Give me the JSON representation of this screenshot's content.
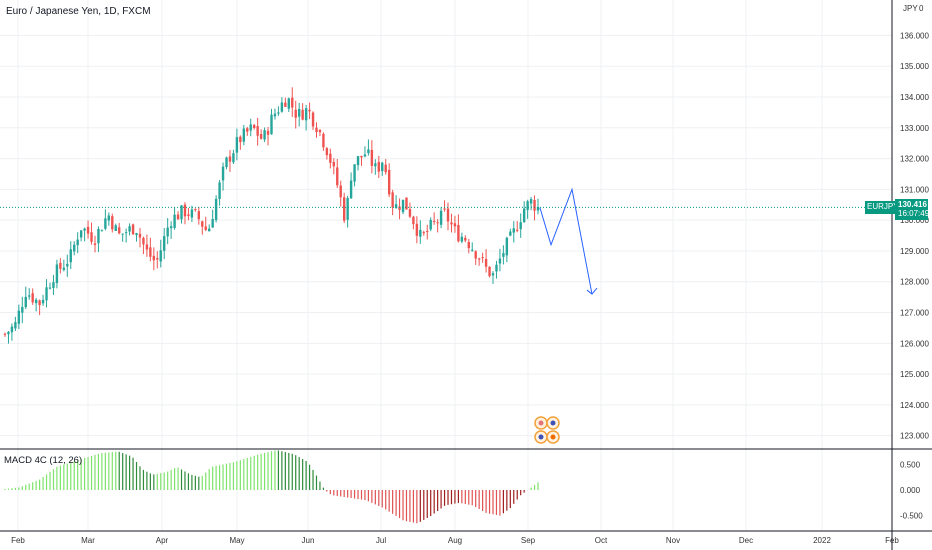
{
  "header": {
    "title": "Euro / Japanese Yen, 1D, FXCM"
  },
  "indicator": {
    "title": "MACD 4C (12, 26)"
  },
  "price_tag": {
    "symbol": "EURJPY",
    "price": "130.416",
    "countdown": "16:07:49",
    "color": "#089981"
  },
  "corner": {
    "currency": "JPY",
    "zero": "0"
  },
  "colors": {
    "up": "#26a69a",
    "down": "#ef5350",
    "projection": "#2962ff",
    "macd_up": "#7ee36b",
    "macd_up_dark": "#2e8b3a",
    "macd_down": "#e05252",
    "macd_down_dark": "#a01e1e"
  },
  "chart_data": [
    {
      "type": "candlestick",
      "y_axis": {
        "ticks": [
          "123.000",
          "124.000",
          "125.000",
          "126.000",
          "127.000",
          "128.000",
          "129.000",
          "130.000",
          "131.000",
          "132.000",
          "133.000",
          "134.000",
          "135.000",
          "136.000"
        ],
        "ylim": [
          122.6,
          137.15
        ]
      },
      "x_axis": {
        "ticks": [
          "Feb",
          "Mar",
          "Apr",
          "May",
          "Jun",
          "Jul",
          "Aug",
          "Sep",
          "Oct",
          "Nov",
          "Dec",
          "2022",
          "Feb"
        ]
      },
      "grid": true,
      "close_path": [
        [
          0,
          126.3
        ],
        [
          6,
          126.6
        ],
        [
          12,
          127.7
        ],
        [
          20,
          127.3
        ],
        [
          28,
          128.2
        ],
        [
          38,
          128.8
        ],
        [
          44,
          129.8
        ],
        [
          52,
          129.4
        ],
        [
          60,
          130.2
        ],
        [
          66,
          129.5
        ],
        [
          76,
          129.8
        ],
        [
          82,
          129.0
        ],
        [
          88,
          128.6
        ],
        [
          96,
          130.0
        ],
        [
          104,
          130.3
        ],
        [
          112,
          130.1
        ],
        [
          118,
          129.6
        ],
        [
          122,
          130.5
        ],
        [
          128,
          131.8
        ],
        [
          136,
          132.6
        ],
        [
          144,
          133.0
        ],
        [
          150,
          132.6
        ],
        [
          156,
          133.4
        ],
        [
          164,
          134.0
        ],
        [
          170,
          133.4
        ],
        [
          176,
          133.6
        ],
        [
          182,
          133.0
        ],
        [
          188,
          132.2
        ],
        [
          194,
          131.0
        ],
        [
          198,
          130.0
        ],
        [
          202,
          131.8
        ],
        [
          210,
          132.2
        ],
        [
          216,
          131.6
        ],
        [
          220,
          132.0
        ],
        [
          226,
          130.4
        ],
        [
          232,
          130.6
        ],
        [
          236,
          130.2
        ],
        [
          242,
          129.4
        ],
        [
          248,
          129.8
        ],
        [
          256,
          130.2
        ],
        [
          262,
          129.6
        ],
        [
          268,
          129.4
        ],
        [
          276,
          128.8
        ],
        [
          280,
          128.4
        ],
        [
          284,
          128.2
        ],
        [
          290,
          129.0
        ],
        [
          296,
          129.6
        ],
        [
          302,
          130.4
        ],
        [
          306,
          130.6
        ],
        [
          310,
          130.4
        ]
      ],
      "projection": [
        [
          130.4
        ],
        [
          129.2
        ],
        [
          131.0
        ],
        [
          127.6
        ]
      ],
      "last_price": 130.416
    },
    {
      "type": "histogram",
      "title": "MACD 4C (12, 26)",
      "y_axis": {
        "ticks": [
          "0.500",
          "0.000",
          "-0.500"
        ],
        "ylim": [
          -0.78,
          0.78
        ]
      },
      "values_path": [
        [
          0,
          0.02
        ],
        [
          8,
          0.05
        ],
        [
          20,
          0.2
        ],
        [
          30,
          0.45
        ],
        [
          44,
          0.6
        ],
        [
          56,
          0.72
        ],
        [
          66,
          0.75
        ],
        [
          74,
          0.65
        ],
        [
          80,
          0.4
        ],
        [
          86,
          0.3
        ],
        [
          94,
          0.35
        ],
        [
          100,
          0.45
        ],
        [
          108,
          0.3
        ],
        [
          114,
          0.25
        ],
        [
          120,
          0.45
        ],
        [
          134,
          0.55
        ],
        [
          148,
          0.7
        ],
        [
          158,
          0.78
        ],
        [
          168,
          0.7
        ],
        [
          176,
          0.55
        ],
        [
          180,
          0.35
        ],
        [
          186,
          0.0
        ],
        [
          190,
          -0.1
        ],
        [
          200,
          -0.15
        ],
        [
          210,
          -0.2
        ],
        [
          220,
          -0.35
        ],
        [
          232,
          -0.6
        ],
        [
          240,
          -0.65
        ],
        [
          248,
          -0.5
        ],
        [
          256,
          -0.3
        ],
        [
          264,
          -0.25
        ],
        [
          272,
          -0.3
        ],
        [
          280,
          -0.45
        ],
        [
          288,
          -0.5
        ],
        [
          294,
          -0.35
        ],
        [
          300,
          -0.1
        ],
        [
          306,
          0.05
        ],
        [
          310,
          0.15
        ]
      ]
    }
  ]
}
